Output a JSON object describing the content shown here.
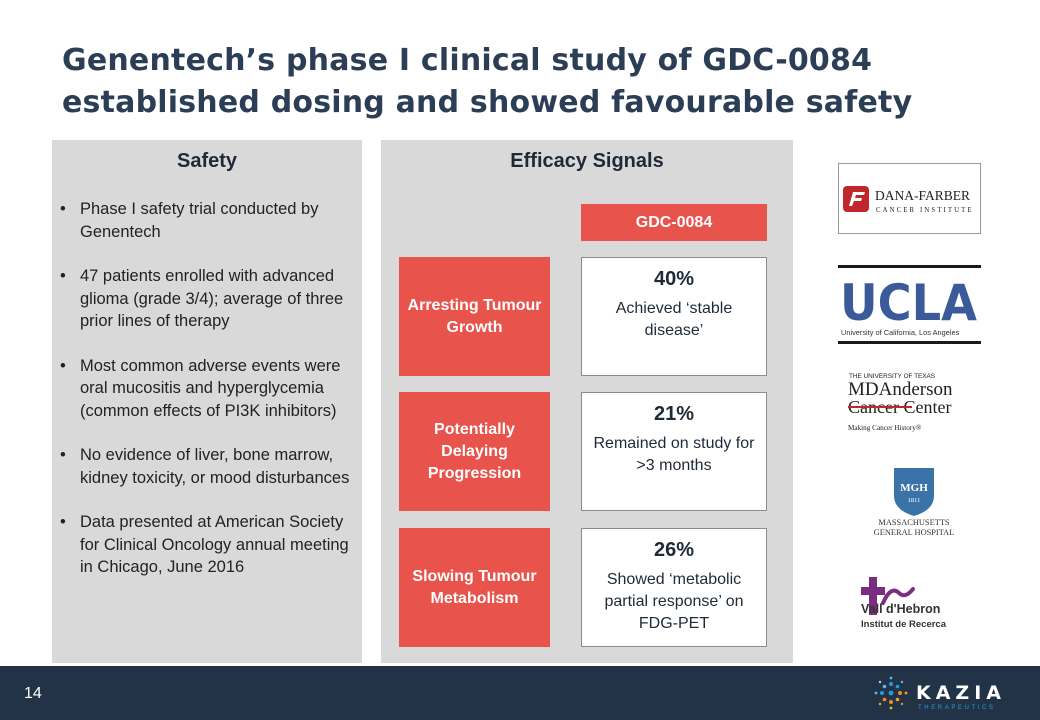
{
  "slide": {
    "title": "Genentech’s phase I clinical study of GDC-0084 established dosing and showed favourable safety",
    "page_number": "14"
  },
  "safety": {
    "heading": "Safety",
    "bullets": [
      "Phase I safety trial conducted by Genentech",
      "47 patients enrolled with advanced glioma (grade 3/4); average of three prior lines of therapy",
      "Most common adverse events were oral mucositis and hyperglycemia (common effects of PI3K inhibitors)",
      "No evidence of liver, bone marrow, kidney toxicity, or mood disturbances",
      "Data presented at American Society for Clinical Oncology annual meeting in Chicago, June 2016"
    ]
  },
  "efficacy": {
    "heading": "Efficacy Signals",
    "drug_label": "GDC-0084",
    "rows": [
      {
        "category": "Arresting Tumour Growth",
        "percent": "40%",
        "description": "Achieved ‘stable disease’"
      },
      {
        "category": "Potentially Delaying Progression",
        "percent": "21%",
        "description": "Remained on study for >3 months"
      },
      {
        "category": "Slowing Tumour Metabolism",
        "percent": "26%",
        "description": "Showed ‘metabolic partial response’ on FDG-PET"
      }
    ]
  },
  "logos": {
    "dana_farber": {
      "line1": "DANA-FARBER",
      "line2": "CANCER INSTITUTE"
    },
    "ucla": {
      "wordmark": "UCLA",
      "subtitle": "University of California, Los Angeles"
    },
    "md_anderson": {
      "line1": "THE UNIVERSITY OF TEXAS",
      "line2": "MDAnderson",
      "line3": "Cancer Center",
      "tagline": "Making Cancer History®"
    },
    "mgh": {
      "seal": "MGH",
      "year": "1811",
      "line1": "MASSACHUSETTS",
      "line2": "GENERAL HOSPITAL"
    },
    "vall_hebron": {
      "line1": "Vall d'Hebron",
      "line2": "Institut de Recerca"
    },
    "kazia": {
      "wordmark": "KAZIA",
      "subtitle": "THERAPEUTICS"
    }
  },
  "colors": {
    "title": "#2c3e55",
    "accent_red": "#e8534b",
    "panel_gray": "#d9d9d9",
    "footer_navy": "#233347",
    "ucla_blue": "#3b5a9a",
    "mgh_blue": "#3a73a8",
    "vall_purple": "#7b2d80",
    "kazia_blue": "#2a9ad6",
    "kazia_orange": "#f08a24"
  }
}
